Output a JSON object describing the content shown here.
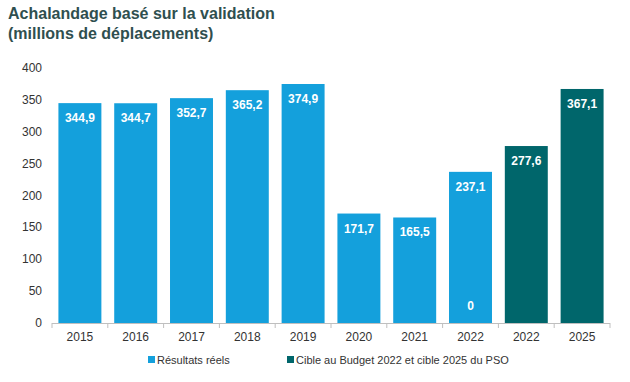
{
  "chart_data": {
    "type": "bar",
    "title": "Achalandage basé sur la validation",
    "subtitle": "(millions de déplacements)",
    "categories": [
      "2015",
      "2016",
      "2017",
      "2018",
      "2019",
      "2020",
      "2021",
      "2022",
      "2022",
      "2025"
    ],
    "series": [
      {
        "name": "Résultats réels",
        "color": "#14a0dc",
        "values": [
          344.9,
          344.7,
          352.7,
          365.2,
          374.9,
          171.7,
          165.5,
          237.1,
          null,
          null
        ],
        "value_labels": [
          "344,9",
          "344,7",
          "352,7",
          "365,2",
          "374,9",
          "171,7",
          "165,5",
          "237,1",
          null,
          null
        ]
      },
      {
        "name": "Cible au Budget 2022 et cible 2025 du PSO",
        "color": "#00666b",
        "values": [
          null,
          null,
          null,
          null,
          null,
          null,
          null,
          0,
          277.6,
          367.1
        ],
        "value_labels": [
          null,
          null,
          null,
          null,
          null,
          null,
          null,
          "0",
          "277,6",
          "367,1"
        ]
      }
    ],
    "ylim": [
      0,
      400
    ],
    "yticks": [
      0,
      50,
      100,
      150,
      200,
      250,
      300,
      350,
      400
    ],
    "grid": false,
    "data_labels": true,
    "legend": "bottom"
  }
}
